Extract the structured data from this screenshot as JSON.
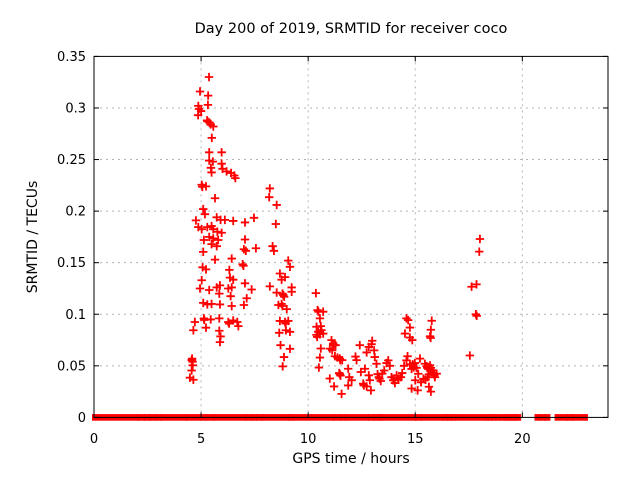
{
  "window": {
    "background": "#ffffff"
  },
  "chart_data": {
    "type": "scatter",
    "title": "Day 200 of 2019, SRMTID for receiver coco",
    "xlabel": "GPS time / hours",
    "ylabel": "SRMTID / TECUs",
    "xlim": [
      0,
      24
    ],
    "ylim": [
      0,
      0.35
    ],
    "xticks": [
      0,
      5,
      10,
      15,
      20
    ],
    "xtick_labels": [
      "0",
      "5",
      "10",
      "15",
      "20"
    ],
    "yticks": [
      0,
      0.05,
      0.1,
      0.15,
      0.2,
      0.25,
      0.3,
      0.35
    ],
    "ytick_labels": [
      "0",
      "0.05",
      "0.1",
      "0.15",
      "0.2",
      "0.25",
      "0.3",
      "0.35"
    ],
    "grid": true,
    "grid_color": "#b4b4b4",
    "border_color": "#000000",
    "legend_position": "none",
    "marker": "plus",
    "marker_color": "#ff0000",
    "points": [
      [
        4.48,
        0.0385
      ],
      [
        4.56,
        0.0555
      ],
      [
        4.56,
        0.0455
      ],
      [
        4.58,
        0.057
      ],
      [
        4.6,
        0.054
      ],
      [
        4.61,
        0.0505
      ],
      [
        4.64,
        0.0845
      ],
      [
        4.64,
        0.0365
      ],
      [
        4.71,
        0.0925
      ],
      [
        4.76,
        0.191
      ],
      [
        4.86,
        0.293
      ],
      [
        4.87,
        0.302
      ],
      [
        4.87,
        0.1845
      ],
      [
        4.9,
        0.299
      ],
      [
        4.95,
        0.316
      ],
      [
        4.95,
        0.125
      ],
      [
        5.0,
        0.297
      ],
      [
        5.03,
        0.2255
      ],
      [
        5.03,
        0.1825
      ],
      [
        5.03,
        0.133
      ],
      [
        5.06,
        0.2235
      ],
      [
        5.07,
        0.1455
      ],
      [
        5.1,
        0.202
      ],
      [
        5.1,
        0.1605
      ],
      [
        5.1,
        0.111
      ],
      [
        5.13,
        0.172
      ],
      [
        5.13,
        0.096
      ],
      [
        5.15,
        0.0945
      ],
      [
        5.18,
        0.197
      ],
      [
        5.23,
        0.224
      ],
      [
        5.23,
        0.1435
      ],
      [
        5.23,
        0.087
      ],
      [
        5.28,
        0.288
      ],
      [
        5.29,
        0.1845
      ],
      [
        5.29,
        0.1095
      ],
      [
        5.3,
        0.287
      ],
      [
        5.32,
        0.303
      ],
      [
        5.33,
        0.312
      ],
      [
        5.37,
        0.33
      ],
      [
        5.38,
        0.286
      ],
      [
        5.38,
        0.257
      ],
      [
        5.38,
        0.249
      ],
      [
        5.38,
        0.175
      ],
      [
        5.38,
        0.1235
      ],
      [
        5.45,
        0.284
      ],
      [
        5.45,
        0.095
      ],
      [
        5.46,
        0.242
      ],
      [
        5.49,
        0.2375
      ],
      [
        5.49,
        0.1855
      ],
      [
        5.49,
        0.168
      ],
      [
        5.49,
        0.11
      ],
      [
        5.5,
        0.271
      ],
      [
        5.55,
        0.248
      ],
      [
        5.57,
        0.282
      ],
      [
        5.57,
        0.1825
      ],
      [
        5.57,
        0.1735
      ],
      [
        5.65,
        0.2125
      ],
      [
        5.65,
        0.153
      ],
      [
        5.73,
        0.194
      ],
      [
        5.73,
        0.166
      ],
      [
        5.73,
        0.126
      ],
      [
        5.76,
        0.18
      ],
      [
        5.8,
        0.172
      ],
      [
        5.85,
        0.12
      ],
      [
        5.85,
        0.096
      ],
      [
        5.85,
        0.084
      ],
      [
        5.88,
        0.128
      ],
      [
        5.88,
        0.1095
      ],
      [
        5.88,
        0.073
      ],
      [
        5.91,
        0.1915
      ],
      [
        5.91,
        0.0785
      ],
      [
        5.96,
        0.257
      ],
      [
        5.96,
        0.246
      ],
      [
        5.96,
        0.179
      ],
      [
        6.0,
        0.241
      ],
      [
        6.11,
        0.1915
      ],
      [
        6.19,
        0.2385
      ],
      [
        6.27,
        0.125
      ],
      [
        6.27,
        0.0925
      ],
      [
        6.31,
        0.091
      ],
      [
        6.32,
        0.143
      ],
      [
        6.35,
        0.1355
      ],
      [
        6.38,
        0.1175
      ],
      [
        6.4,
        0.237
      ],
      [
        6.43,
        0.154
      ],
      [
        6.43,
        0.126
      ],
      [
        6.43,
        0.108
      ],
      [
        6.5,
        0.1905
      ],
      [
        6.5,
        0.1335
      ],
      [
        6.5,
        0.094
      ],
      [
        6.55,
        0.2345
      ],
      [
        6.6,
        0.232
      ],
      [
        6.69,
        0.0925
      ],
      [
        6.74,
        0.0885
      ],
      [
        6.94,
        0.1485
      ],
      [
        6.98,
        0.147
      ],
      [
        7.0,
        0.163
      ],
      [
        7.0,
        0.109
      ],
      [
        7.05,
        0.189
      ],
      [
        7.05,
        0.1725
      ],
      [
        7.05,
        0.13
      ],
      [
        7.09,
        0.1615
      ],
      [
        7.13,
        0.1155
      ],
      [
        7.36,
        0.124
      ],
      [
        7.47,
        0.1935
      ],
      [
        7.56,
        0.164
      ],
      [
        8.18,
        0.2135
      ],
      [
        8.21,
        0.222
      ],
      [
        8.21,
        0.127
      ],
      [
        8.34,
        0.166
      ],
      [
        8.4,
        0.1615
      ],
      [
        8.49,
        0.1875
      ],
      [
        8.53,
        0.206
      ],
      [
        8.53,
        0.121
      ],
      [
        8.61,
        0.109
      ],
      [
        8.65,
        0.082
      ],
      [
        8.68,
        0.1395
      ],
      [
        8.68,
        0.0935
      ],
      [
        8.71,
        0.07
      ],
      [
        8.76,
        0.1335
      ],
      [
        8.76,
        0.11
      ],
      [
        8.8,
        0.12
      ],
      [
        8.8,
        0.108
      ],
      [
        8.81,
        0.0495
      ],
      [
        8.84,
        0.1185
      ],
      [
        8.87,
        0.0585
      ],
      [
        8.88,
        0.117
      ],
      [
        8.92,
        0.136
      ],
      [
        8.92,
        0.0925
      ],
      [
        8.95,
        0.091
      ],
      [
        8.96,
        0.0845
      ],
      [
        9.0,
        0.105
      ],
      [
        9.07,
        0.152
      ],
      [
        9.07,
        0.0935
      ],
      [
        9.15,
        0.146
      ],
      [
        9.15,
        0.083
      ],
      [
        9.15,
        0.0665
      ],
      [
        9.23,
        0.126
      ],
      [
        9.23,
        0.1218
      ],
      [
        10.36,
        0.1205
      ],
      [
        10.39,
        0.0879
      ],
      [
        10.39,
        0.08
      ],
      [
        10.42,
        0.078
      ],
      [
        10.44,
        0.104
      ],
      [
        10.47,
        0.083
      ],
      [
        10.48,
        0.1025
      ],
      [
        10.5,
        0.0483
      ],
      [
        10.55,
        0.096
      ],
      [
        10.55,
        0.0806
      ],
      [
        10.55,
        0.058
      ],
      [
        10.59,
        0.0885
      ],
      [
        10.59,
        0.0668
      ],
      [
        10.62,
        0.0846
      ],
      [
        10.7,
        0.1025
      ],
      [
        10.7,
        0.0813
      ],
      [
        11.01,
        0.0667
      ],
      [
        11.01,
        0.0377
      ],
      [
        11.09,
        0.0749
      ],
      [
        11.12,
        0.065
      ],
      [
        11.17,
        0.0716
      ],
      [
        11.2,
        0.07
      ],
      [
        11.21,
        0.03
      ],
      [
        11.25,
        0.0593
      ],
      [
        11.28,
        0.07
      ],
      [
        11.37,
        0.058
      ],
      [
        11.45,
        0.043
      ],
      [
        11.48,
        0.057
      ],
      [
        11.48,
        0.0419
      ],
      [
        11.5,
        0.0555
      ],
      [
        11.51,
        0.0405
      ],
      [
        11.56,
        0.0228
      ],
      [
        11.59,
        0.0555
      ],
      [
        11.87,
        0.0472
      ],
      [
        11.87,
        0.031
      ],
      [
        11.92,
        0.039
      ],
      [
        12.03,
        0.036
      ],
      [
        12.21,
        0.059
      ],
      [
        12.26,
        0.0555
      ],
      [
        12.41,
        0.07
      ],
      [
        12.46,
        0.044
      ],
      [
        12.57,
        0.0327
      ],
      [
        12.6,
        0.031
      ],
      [
        12.65,
        0.0472
      ],
      [
        12.73,
        0.063
      ],
      [
        12.73,
        0.03
      ],
      [
        12.83,
        0.0683
      ],
      [
        12.83,
        0.0408
      ],
      [
        12.88,
        0.036
      ],
      [
        12.93,
        0.0262
      ],
      [
        12.96,
        0.071
      ],
      [
        12.99,
        0.0743
      ],
      [
        13.08,
        0.065
      ],
      [
        13.11,
        0.0585
      ],
      [
        13.19,
        0.052
      ],
      [
        13.24,
        0.0419
      ],
      [
        13.3,
        0.039
      ],
      [
        13.33,
        0.0375
      ],
      [
        13.39,
        0.0353
      ],
      [
        13.46,
        0.0425
      ],
      [
        13.55,
        0.0455
      ],
      [
        13.66,
        0.0527
      ],
      [
        13.74,
        0.0553
      ],
      [
        13.81,
        0.05
      ],
      [
        13.89,
        0.039
      ],
      [
        13.97,
        0.036
      ],
      [
        14.05,
        0.0333
      ],
      [
        14.13,
        0.0408
      ],
      [
        14.2,
        0.0375
      ],
      [
        14.22,
        0.0365
      ],
      [
        14.33,
        0.039
      ],
      [
        14.39,
        0.043
      ],
      [
        14.48,
        0.05
      ],
      [
        14.52,
        0.0813
      ],
      [
        14.59,
        0.096
      ],
      [
        14.59,
        0.0553
      ],
      [
        14.64,
        0.0593
      ],
      [
        14.67,
        0.0943
      ],
      [
        14.75,
        0.0871
      ],
      [
        14.75,
        0.0774
      ],
      [
        14.75,
        0.0515
      ],
      [
        14.83,
        0.047
      ],
      [
        14.83,
        0.028
      ],
      [
        14.86,
        0.0749
      ],
      [
        14.88,
        0.0515
      ],
      [
        14.9,
        0.05
      ],
      [
        14.93,
        0.0485
      ],
      [
        14.98,
        0.0527
      ],
      [
        15.0,
        0.036
      ],
      [
        15.06,
        0.048
      ],
      [
        15.11,
        0.0262
      ],
      [
        15.14,
        0.0423
      ],
      [
        15.22,
        0.057
      ],
      [
        15.27,
        0.034
      ],
      [
        15.38,
        0.0375
      ],
      [
        15.45,
        0.052
      ],
      [
        15.48,
        0.0365
      ],
      [
        15.53,
        0.0497
      ],
      [
        15.56,
        0.048
      ],
      [
        15.58,
        0.039
      ],
      [
        15.61,
        0.047
      ],
      [
        15.64,
        0.0417
      ],
      [
        15.64,
        0.0297
      ],
      [
        15.69,
        0.0786
      ],
      [
        15.69,
        0.0505
      ],
      [
        15.72,
        0.077
      ],
      [
        15.73,
        0.085
      ],
      [
        15.73,
        0.048
      ],
      [
        15.73,
        0.025
      ],
      [
        15.77,
        0.0937
      ],
      [
        15.8,
        0.0457
      ],
      [
        15.84,
        0.0431
      ],
      [
        15.89,
        0.041
      ],
      [
        15.92,
        0.039
      ],
      [
        16.0,
        0.0424
      ],
      [
        17.55,
        0.06
      ],
      [
        17.63,
        0.1267
      ],
      [
        17.83,
        0.1
      ],
      [
        17.86,
        0.129
      ],
      [
        17.87,
        0.0985
      ],
      [
        17.99,
        0.1607
      ],
      [
        18.02,
        0.173
      ]
    ],
    "zero_line_segments": [
      [
        0.0,
        2.03
      ],
      [
        2.12,
        2.33
      ],
      [
        2.43,
        2.56
      ],
      [
        2.66,
        2.83
      ],
      [
        2.93,
        3.09
      ],
      [
        3.19,
        4.27
      ],
      [
        4.37,
        4.93
      ],
      [
        5.03,
        5.18
      ],
      [
        5.28,
        5.55
      ],
      [
        5.65,
        7.05
      ],
      [
        7.15,
        7.31
      ],
      [
        7.41,
        7.54
      ],
      [
        7.64,
        7.81
      ],
      [
        7.91,
        9.04
      ],
      [
        9.14,
        9.21
      ],
      [
        9.31,
        11.15
      ],
      [
        11.25,
        11.47
      ],
      [
        11.57,
        11.7
      ],
      [
        11.8,
        12.79
      ],
      [
        12.89,
        13.02
      ],
      [
        13.12,
        13.25
      ],
      [
        13.34,
        13.4
      ],
      [
        13.46,
        14.97
      ],
      [
        15.07,
        15.23
      ],
      [
        15.33,
        16.27
      ],
      [
        16.37,
        16.46
      ],
      [
        16.54,
        16.65
      ],
      [
        16.74,
        16.83
      ],
      [
        16.93,
        18.14
      ],
      [
        18.27,
        18.36
      ],
      [
        18.45,
        18.53
      ],
      [
        18.61,
        18.69
      ],
      [
        18.83,
        18.9
      ],
      [
        19.03,
        19.11
      ],
      [
        19.2,
        19.26
      ],
      [
        19.32,
        19.42
      ],
      [
        19.51,
        19.58
      ],
      [
        19.62,
        19.7
      ],
      [
        19.76,
        19.85
      ],
      [
        20.66,
        20.79
      ],
      [
        20.9,
        21.0
      ],
      [
        21.1,
        21.22
      ],
      [
        21.6,
        22.06
      ],
      [
        22.14,
        22.3
      ],
      [
        22.37,
        22.97
      ]
    ]
  }
}
